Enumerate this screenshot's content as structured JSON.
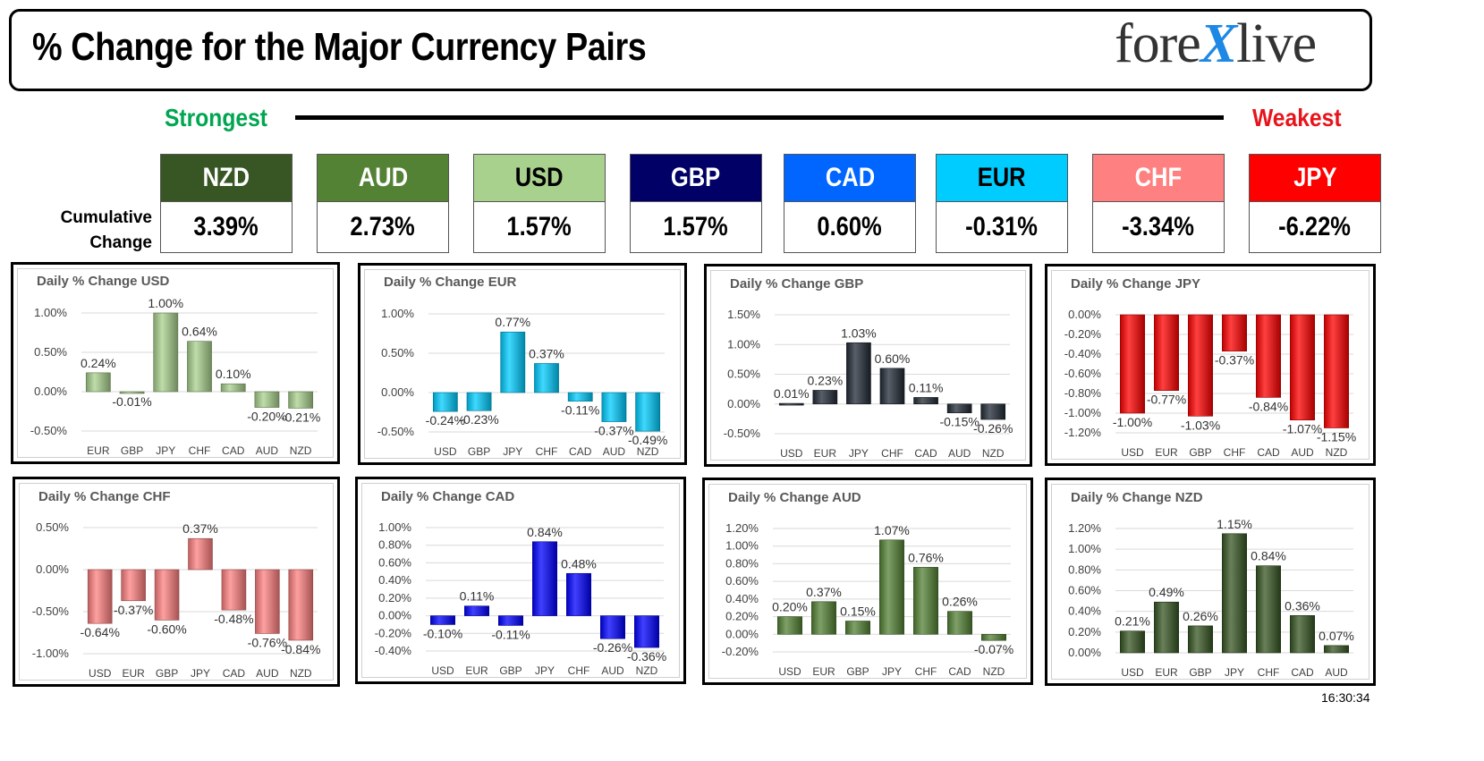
{
  "header": {
    "title": "% Change for the Major Currency Pairs",
    "logo": "forexlive"
  },
  "scale": {
    "strongest": "Strongest",
    "weakest": "Weakest"
  },
  "cumulative": {
    "label_line1": "Cumulative",
    "label_line2": "Change",
    "currencies": [
      {
        "name": "NZD",
        "value": "3.39%",
        "bg": "#375623",
        "fg": "#ffffff"
      },
      {
        "name": "AUD",
        "value": "2.73%",
        "bg": "#548235",
        "fg": "#ffffff"
      },
      {
        "name": "USD",
        "value": "1.57%",
        "bg": "#a9d18e",
        "fg": "#000000"
      },
      {
        "name": "GBP",
        "value": "1.57%",
        "bg": "#000066",
        "fg": "#ffffff"
      },
      {
        "name": "CAD",
        "value": "0.60%",
        "bg": "#0066ff",
        "fg": "#ffffff"
      },
      {
        "name": "EUR",
        "value": "-0.31%",
        "bg": "#00ccff",
        "fg": "#000000"
      },
      {
        "name": "CHF",
        "value": "-3.34%",
        "bg": "#ff8080",
        "fg": "#ffffff"
      },
      {
        "name": "JPY",
        "value": "-6.22%",
        "bg": "#ff0000",
        "fg": "#ffffff"
      }
    ]
  },
  "timestamp": "16:30:34",
  "chart_data": [
    {
      "type": "bar",
      "title": "Daily % Change USD",
      "categories": [
        "EUR",
        "GBP",
        "JPY",
        "CHF",
        "CAD",
        "AUD",
        "NZD"
      ],
      "values": [
        0.24,
        -0.01,
        1.0,
        0.64,
        0.1,
        -0.2,
        -0.21
      ],
      "labels": [
        "0.24%",
        "-0.01%",
        "1.00%",
        "0.64%",
        "0.10%",
        "-0.20%",
        "-0.21%"
      ],
      "yticks": [
        1.0,
        0.5,
        0.0,
        -0.5
      ],
      "ytick_labels": [
        "1.00%",
        "0.50%",
        "0.00%",
        "-0.50%"
      ],
      "ylim": [
        -0.5,
        1.0
      ],
      "color": "#a9d18e",
      "grid": true
    },
    {
      "type": "bar",
      "title": "Daily % Change EUR",
      "categories": [
        "USD",
        "GBP",
        "JPY",
        "CHF",
        "CAD",
        "AUD",
        "NZD"
      ],
      "values": [
        -0.24,
        -0.23,
        0.77,
        0.37,
        -0.11,
        -0.37,
        -0.49
      ],
      "labels": [
        "-0.24%",
        "-0.23%",
        "0.77%",
        "0.37%",
        "-0.11%",
        "-0.37%",
        "-0.49%"
      ],
      "yticks": [
        1.0,
        0.5,
        0.0,
        -0.5
      ],
      "ytick_labels": [
        "1.00%",
        "0.50%",
        "0.00%",
        "-0.50%"
      ],
      "ylim": [
        -0.5,
        1.0
      ],
      "color": "#00ccff",
      "grid": true
    },
    {
      "type": "bar",
      "title": "Daily % Change GBP",
      "categories": [
        "USD",
        "EUR",
        "JPY",
        "CHF",
        "CAD",
        "AUD",
        "NZD"
      ],
      "values": [
        0.01,
        0.23,
        1.03,
        0.6,
        0.11,
        -0.15,
        -0.26
      ],
      "labels": [
        "0.01%",
        "0.23%",
        "1.03%",
        "0.60%",
        "0.11%",
        "-0.15%",
        "-0.26%"
      ],
      "yticks": [
        1.5,
        1.0,
        0.5,
        0.0,
        -0.5
      ],
      "ytick_labels": [
        "1.50%",
        "1.00%",
        "0.50%",
        "0.00%",
        "-0.50%"
      ],
      "ylim": [
        -0.5,
        1.5
      ],
      "color": "#222a35",
      "grid": true
    },
    {
      "type": "bar",
      "title": "Daily % Change JPY",
      "categories": [
        "USD",
        "EUR",
        "GBP",
        "CHF",
        "CAD",
        "AUD",
        "NZD"
      ],
      "values": [
        -1.0,
        -0.77,
        -1.03,
        -0.37,
        -0.84,
        -1.07,
        -1.15
      ],
      "labels": [
        "-1.00%",
        "-0.77%",
        "-1.03%",
        "-0.37%",
        "-0.84%",
        "-1.07%",
        "-1.15%"
      ],
      "yticks": [
        0.0,
        -0.2,
        -0.4,
        -0.6,
        -0.8,
        -1.0,
        -1.2
      ],
      "ytick_labels": [
        "0.00%",
        "-0.20%",
        "-0.40%",
        "-0.60%",
        "-0.80%",
        "-1.00%",
        "-1.20%"
      ],
      "ylim": [
        -1.2,
        0.0
      ],
      "color": "#ff0000",
      "grid": true
    },
    {
      "type": "bar",
      "title": "Daily % Change CHF",
      "categories": [
        "USD",
        "EUR",
        "GBP",
        "JPY",
        "CAD",
        "AUD",
        "NZD"
      ],
      "values": [
        -0.64,
        -0.37,
        -0.6,
        0.37,
        -0.48,
        -0.76,
        -0.84
      ],
      "labels": [
        "-0.64%",
        "-0.37%",
        "-0.60%",
        "0.37%",
        "-0.48%",
        "-0.76%",
        "-0.84%"
      ],
      "yticks": [
        0.5,
        0.0,
        -0.5,
        -1.0
      ],
      "ytick_labels": [
        "0.50%",
        "0.00%",
        "-0.50%",
        "-1.00%"
      ],
      "ylim": [
        -1.0,
        0.5
      ],
      "color": "#ff8080",
      "grid": true
    },
    {
      "type": "bar",
      "title": "Daily % Change CAD",
      "categories": [
        "USD",
        "EUR",
        "GBP",
        "JPY",
        "CHF",
        "AUD",
        "NZD"
      ],
      "values": [
        -0.1,
        0.11,
        -0.11,
        0.84,
        0.48,
        -0.26,
        -0.36
      ],
      "labels": [
        "-0.10%",
        "0.11%",
        "-0.11%",
        "0.84%",
        "0.48%",
        "-0.26%",
        "-0.36%"
      ],
      "yticks": [
        1.0,
        0.8,
        0.6,
        0.4,
        0.2,
        0.0,
        -0.2,
        -0.4
      ],
      "ytick_labels": [
        "1.00%",
        "0.80%",
        "0.60%",
        "0.40%",
        "0.20%",
        "0.00%",
        "-0.20%",
        "-0.40%"
      ],
      "ylim": [
        -0.4,
        1.0
      ],
      "color": "#0000ff",
      "grid": true
    },
    {
      "type": "bar",
      "title": "Daily % Change AUD",
      "categories": [
        "USD",
        "EUR",
        "GBP",
        "JPY",
        "CHF",
        "CAD",
        "NZD"
      ],
      "values": [
        0.2,
        0.37,
        0.15,
        1.07,
        0.76,
        0.26,
        -0.07
      ],
      "labels": [
        "0.20%",
        "0.37%",
        "0.15%",
        "1.07%",
        "0.76%",
        "0.26%",
        "-0.07%"
      ],
      "yticks": [
        1.2,
        1.0,
        0.8,
        0.6,
        0.4,
        0.2,
        0.0,
        -0.2
      ],
      "ytick_labels": [
        "1.20%",
        "1.00%",
        "0.80%",
        "0.60%",
        "0.40%",
        "0.20%",
        "0.00%",
        "-0.20%"
      ],
      "ylim": [
        -0.2,
        1.2
      ],
      "color": "#548235",
      "grid": true
    },
    {
      "type": "bar",
      "title": "Daily % Change NZD",
      "categories": [
        "USD",
        "EUR",
        "GBP",
        "JPY",
        "CHF",
        "CAD",
        "AUD"
      ],
      "values": [
        0.21,
        0.49,
        0.26,
        1.15,
        0.84,
        0.36,
        0.07
      ],
      "labels": [
        "0.21%",
        "0.49%",
        "0.26%",
        "1.15%",
        "0.84%",
        "0.36%",
        "0.07%"
      ],
      "yticks": [
        1.2,
        1.0,
        0.8,
        0.6,
        0.4,
        0.2,
        0.0
      ],
      "ytick_labels": [
        "1.20%",
        "1.00%",
        "0.80%",
        "0.60%",
        "0.40%",
        "0.20%",
        "0.00%"
      ],
      "ylim": [
        0.0,
        1.2
      ],
      "color": "#375623",
      "grid": true
    }
  ]
}
